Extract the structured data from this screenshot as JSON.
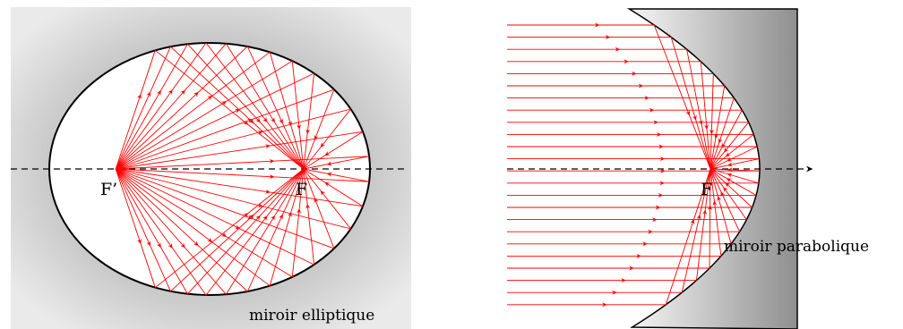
{
  "left_panel": {
    "focus_far_label": "F’",
    "focus_near_label": "F",
    "caption": "miroir elliptique"
  },
  "right_panel": {
    "focus_label": "F",
    "caption": "miroir parabolique"
  },
  "colors": {
    "ray": "#ff0000",
    "mirror_gradient_dark": "#8c8c8c",
    "mirror_gradient_light": "#f4f4f4",
    "outline": "#000000"
  }
}
